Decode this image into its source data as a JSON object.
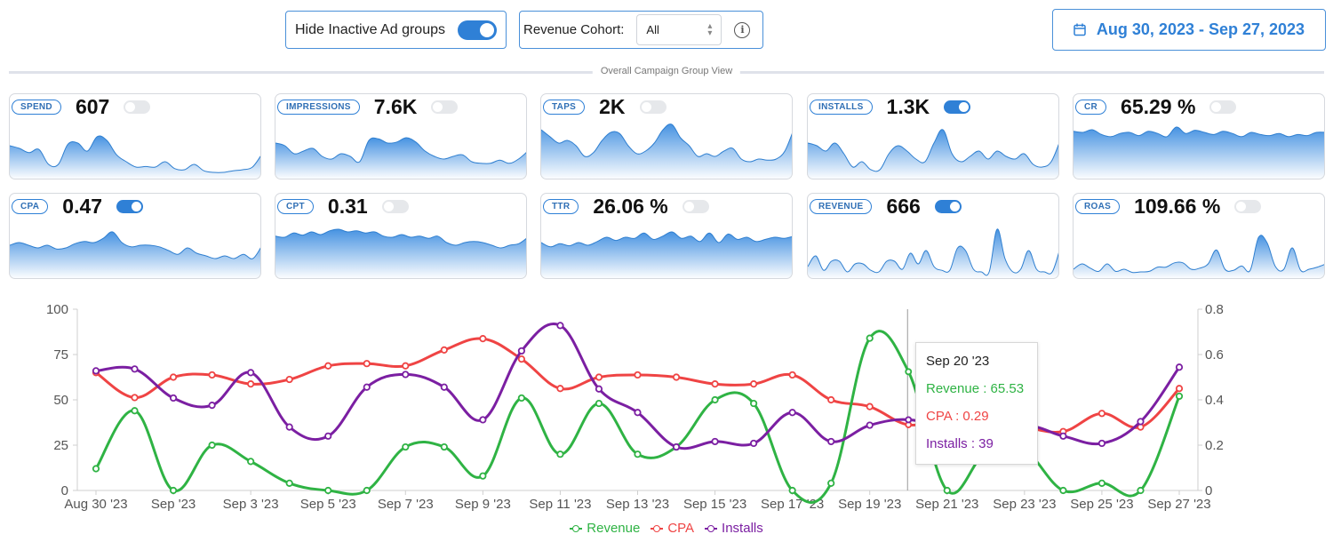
{
  "toolbar": {
    "hide_inactive_label": "Hide Inactive Ad groups",
    "hide_inactive_on": true,
    "revenue_cohort_label": "Revenue Cohort:",
    "revenue_cohort_value": "All",
    "date_range": "Aug 30, 2023 - Sep 27, 2023"
  },
  "section_title": "Overall Campaign Group View",
  "metrics": [
    {
      "label": "SPEND",
      "value": "607",
      "toggle_on": false,
      "spark": [
        0.55,
        0.5,
        0.42,
        0.48,
        0.2,
        0.2,
        0.58,
        0.6,
        0.45,
        0.72,
        0.65,
        0.38,
        0.25,
        0.15,
        0.16,
        0.15,
        0.25,
        0.12,
        0.1,
        0.2,
        0.08,
        0.05,
        0.05,
        0.08,
        0.1,
        0.15,
        0.4
      ]
    },
    {
      "label": "IMPRESSIONS",
      "value": "7.6K",
      "toggle_on": false,
      "spark": [
        0.6,
        0.55,
        0.4,
        0.45,
        0.5,
        0.35,
        0.3,
        0.4,
        0.35,
        0.25,
        0.65,
        0.68,
        0.6,
        0.62,
        0.7,
        0.62,
        0.45,
        0.35,
        0.3,
        0.35,
        0.38,
        0.25,
        0.22,
        0.22,
        0.28,
        0.22,
        0.3,
        0.45
      ]
    },
    {
      "label": "TAPS",
      "value": "2K",
      "toggle_on": false,
      "spark": [
        0.85,
        0.72,
        0.6,
        0.65,
        0.55,
        0.35,
        0.42,
        0.65,
        0.8,
        0.78,
        0.55,
        0.4,
        0.45,
        0.6,
        0.85,
        0.95,
        0.7,
        0.55,
        0.35,
        0.4,
        0.35,
        0.45,
        0.5,
        0.3,
        0.25,
        0.3,
        0.28,
        0.3,
        0.45,
        0.85
      ]
    },
    {
      "label": "INSTALLS",
      "value": "1.3K",
      "toggle_on": true,
      "spark": [
        0.6,
        0.55,
        0.45,
        0.6,
        0.4,
        0.15,
        0.25,
        0.1,
        0.1,
        0.4,
        0.55,
        0.45,
        0.3,
        0.25,
        0.6,
        0.85,
        0.4,
        0.25,
        0.35,
        0.45,
        0.3,
        0.45,
        0.35,
        0.3,
        0.4,
        0.2,
        0.15,
        0.25,
        0.65
      ]
    },
    {
      "label": "CR",
      "value": "65.29 %",
      "toggle_on": false,
      "spark": [
        0.82,
        0.8,
        0.85,
        0.76,
        0.72,
        0.78,
        0.8,
        0.74,
        0.82,
        0.78,
        0.72,
        0.9,
        0.78,
        0.84,
        0.8,
        0.76,
        0.82,
        0.78,
        0.72,
        0.8,
        0.76,
        0.74,
        0.78,
        0.72,
        0.76,
        0.74,
        0.8,
        0.8
      ]
    },
    {
      "label": "CPA",
      "value": "0.47",
      "toggle_on": true,
      "spark": [
        0.55,
        0.6,
        0.55,
        0.5,
        0.55,
        0.48,
        0.5,
        0.58,
        0.62,
        0.6,
        0.68,
        0.8,
        0.6,
        0.52,
        0.55,
        0.55,
        0.52,
        0.45,
        0.38,
        0.5,
        0.4,
        0.35,
        0.3,
        0.35,
        0.3,
        0.38,
        0.3,
        0.55
      ]
    },
    {
      "label": "CPT",
      "value": "0.31",
      "toggle_on": false,
      "spark": [
        0.72,
        0.7,
        0.78,
        0.74,
        0.8,
        0.75,
        0.82,
        0.85,
        0.8,
        0.82,
        0.78,
        0.8,
        0.72,
        0.7,
        0.75,
        0.7,
        0.72,
        0.68,
        0.72,
        0.6,
        0.55,
        0.6,
        0.62,
        0.6,
        0.55,
        0.5,
        0.55,
        0.58,
        0.7
      ]
    },
    {
      "label": "TTR",
      "value": "26.06 %",
      "toggle_on": false,
      "spark": [
        0.6,
        0.52,
        0.58,
        0.54,
        0.6,
        0.55,
        0.62,
        0.7,
        0.64,
        0.7,
        0.68,
        0.78,
        0.66,
        0.72,
        0.8,
        0.68,
        0.72,
        0.62,
        0.78,
        0.6,
        0.76,
        0.66,
        0.7,
        0.62,
        0.66,
        0.7,
        0.68,
        0.72
      ]
    },
    {
      "label": "REVENUE",
      "value": "666",
      "toggle_on": true,
      "spark": [
        0.15,
        0.35,
        0.08,
        0.25,
        0.25,
        0.05,
        0.2,
        0.2,
        0.08,
        0.05,
        0.25,
        0.25,
        0.1,
        0.4,
        0.2,
        0.45,
        0.15,
        0.08,
        0.08,
        0.5,
        0.45,
        0.1,
        0.05,
        0.05,
        0.85,
        0.3,
        0.05,
        0.1,
        0.45,
        0.1,
        0.05,
        0.05,
        0.5
      ]
    },
    {
      "label": "ROAS",
      "value": "109.66 %",
      "toggle_on": false,
      "spark": [
        0.1,
        0.2,
        0.12,
        0.06,
        0.2,
        0.06,
        0.1,
        0.04,
        0.05,
        0.06,
        0.14,
        0.14,
        0.22,
        0.22,
        0.1,
        0.12,
        0.2,
        0.46,
        0.1,
        0.08,
        0.16,
        0.08,
        0.7,
        0.6,
        0.15,
        0.1,
        0.5,
        0.08,
        0.1,
        0.14,
        0.2
      ]
    }
  ],
  "chart_data": {
    "type": "line",
    "x": [
      "Aug 30 '23",
      "Aug 31 '23",
      "Sep 1 '23",
      "Sep 2 '23",
      "Sep 3 '23",
      "Sep 4 '23",
      "Sep 5 '23",
      "Sep 6 '23",
      "Sep 7 '23",
      "Sep 8 '23",
      "Sep 9 '23",
      "Sep 10 '23",
      "Sep 11 '23",
      "Sep 12 '23",
      "Sep 13 '23",
      "Sep 14 '23",
      "Sep 15 '23",
      "Sep 16 '23",
      "Sep 17 '23",
      "Sep 18 '23",
      "Sep 19 '23",
      "Sep 20 '23",
      "Sep 21 '23",
      "Sep 22 '23",
      "Sep 23 '23",
      "Sep 24 '23",
      "Sep 25 '23",
      "Sep 26 '23",
      "Sep 27 '23"
    ],
    "x_tick_labels": [
      "Aug 30 '23",
      "Sep '23",
      "Sep 3 '23",
      "Sep 5 '23",
      "Sep 7 '23",
      "Sep 9 '23",
      "Sep 11 '23",
      "Sep 13 '23",
      "Sep 15 '23",
      "Sep 17 '23",
      "Sep 19 '23",
      "Sep 21 '23",
      "Sep 23 '23",
      "Sep 25 '23",
      "Sep 27 '23"
    ],
    "series": [
      {
        "name": "Revenue",
        "axis": "left",
        "color": "#2fb344",
        "values": [
          12,
          44,
          0,
          25,
          16,
          4,
          0,
          0,
          24,
          24,
          8,
          51,
          20,
          48,
          20,
          24,
          50,
          48,
          0,
          4,
          84,
          65.53,
          0,
          21,
          22,
          0,
          4,
          0,
          52
        ]
      },
      {
        "name": "CPA",
        "axis": "right",
        "color": "#ef4444",
        "values": [
          0.52,
          0.41,
          0.5,
          0.51,
          0.47,
          0.49,
          0.55,
          0.56,
          0.55,
          0.62,
          0.67,
          0.58,
          0.45,
          0.5,
          0.51,
          0.5,
          0.47,
          0.47,
          0.51,
          0.4,
          0.37,
          0.29,
          0.32,
          0.31,
          0.28,
          0.26,
          0.34,
          0.28,
          0.45
        ]
      },
      {
        "name": "Installs",
        "axis": "left",
        "color": "#7b1fa2",
        "values": [
          66,
          67,
          51,
          47,
          65,
          35,
          30,
          57,
          64,
          57,
          39,
          77,
          91,
          56,
          43,
          24,
          27,
          26,
          43,
          27,
          36,
          39,
          33,
          20,
          35,
          30,
          26,
          38,
          68
        ]
      }
    ],
    "ylim_left": [
      0,
      100
    ],
    "ylim_right": [
      0,
      0.8
    ],
    "yticks_left": [
      0,
      25,
      50,
      75,
      100
    ],
    "yticks_right": [
      0,
      0.2,
      0.4,
      0.6,
      0.8
    ],
    "hover_index": 21,
    "legend_position": "bottom"
  },
  "tooltip": {
    "date": "Sep 20 '23",
    "revenue": "Revenue : 65.53",
    "cpa": "CPA : 0.29",
    "installs": "Installs : 39"
  },
  "legend": {
    "revenue": "Revenue",
    "cpa": "CPA",
    "installs": "Installs"
  }
}
